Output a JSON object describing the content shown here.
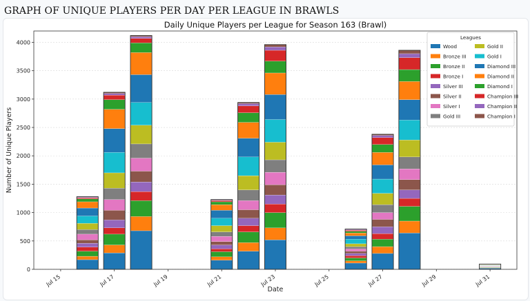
{
  "page": {
    "heading": "GRAPH OF UNIQUE PLAYERS PER DAY PER LEAGUE IN BRAWLS"
  },
  "chart_data": {
    "type": "bar",
    "stacked": true,
    "title": "Daily Unique Players per League for Season 163 (Brawl)",
    "xlabel": "Date",
    "ylabel": "Number of Unique Players",
    "ylim": [
      0,
      4200
    ],
    "y_ticks": [
      0,
      500,
      1000,
      1500,
      2000,
      2500,
      3000,
      3500,
      4000
    ],
    "grid": true,
    "x_tick_labels": [
      "Jul 15",
      "Jul 17",
      "Jul 19",
      "Jul 21",
      "Jul 23",
      "Jul 25",
      "Jul 27",
      "Jul 29",
      "Jul 31"
    ],
    "x_tick_days": [
      15,
      17,
      19,
      21,
      23,
      25,
      27,
      29,
      31
    ],
    "x_range_days": [
      14,
      32
    ],
    "categories": [
      "Jul 16",
      "Jul 17",
      "Jul 18",
      "Jul 21",
      "Jul 22",
      "Jul 23",
      "Jul 26",
      "Jul 27",
      "Jul 28",
      "Jul 31"
    ],
    "category_days": [
      16,
      17,
      18,
      21,
      22,
      23,
      26,
      27,
      28,
      31
    ],
    "legend": {
      "title": "Leagues",
      "placement": "top-right",
      "columns": 2
    },
    "series": [
      {
        "name": "Wood",
        "color": "#1f77b4",
        "values": [
          170,
          290,
          680,
          160,
          320,
          520,
          110,
          280,
          640,
          20
        ]
      },
      {
        "name": "Bronze III",
        "color": "#ff7f0e",
        "values": [
          60,
          140,
          250,
          60,
          150,
          210,
          40,
          120,
          210,
          8
        ]
      },
      {
        "name": "Bronze II",
        "color": "#2ca02c",
        "values": [
          90,
          190,
          280,
          90,
          190,
          270,
          50,
          130,
          260,
          8
        ]
      },
      {
        "name": "Bronze I",
        "color": "#d62728",
        "values": [
          70,
          110,
          160,
          50,
          110,
          150,
          40,
          100,
          140,
          5
        ]
      },
      {
        "name": "Silver III",
        "color": "#9467bd",
        "values": [
          70,
          140,
          170,
          70,
          130,
          160,
          40,
          120,
          150,
          5
        ]
      },
      {
        "name": "Silver II",
        "color": "#8c564b",
        "values": [
          60,
          170,
          190,
          60,
          150,
          180,
          40,
          130,
          180,
          5
        ]
      },
      {
        "name": "Silver I",
        "color": "#e377c2",
        "values": [
          100,
          190,
          230,
          90,
          160,
          220,
          40,
          120,
          190,
          5
        ]
      },
      {
        "name": "Gold III",
        "color": "#7f7f7f",
        "values": [
          80,
          200,
          250,
          80,
          190,
          220,
          40,
          140,
          210,
          5
        ]
      },
      {
        "name": "Gold II",
        "color": "#bcbd22",
        "values": [
          110,
          270,
          330,
          110,
          250,
          310,
          50,
          200,
          300,
          5
        ]
      },
      {
        "name": "Gold I",
        "color": "#17becf",
        "values": [
          130,
          360,
          400,
          130,
          330,
          400,
          80,
          250,
          350,
          5
        ]
      },
      {
        "name": "Diamond III",
        "color": "#1f77b4",
        "values": [
          140,
          420,
          490,
          140,
          330,
          440,
          60,
          250,
          360,
          5
        ]
      },
      {
        "name": "Diamond II",
        "color": "#ff7f0e",
        "values": [
          110,
          340,
          390,
          100,
          280,
          380,
          50,
          220,
          320,
          5
        ]
      },
      {
        "name": "Diamond I",
        "color": "#2ca02c",
        "values": [
          50,
          170,
          170,
          50,
          170,
          210,
          30,
          140,
          210,
          5
        ]
      },
      {
        "name": "Champion III",
        "color": "#d62728",
        "values": [
          20,
          80,
          80,
          20,
          120,
          190,
          20,
          120,
          210,
          3
        ]
      },
      {
        "name": "Champion II",
        "color": "#9467bd",
        "values": [
          10,
          30,
          30,
          10,
          40,
          60,
          10,
          40,
          70,
          2
        ]
      },
      {
        "name": "Champion I",
        "color": "#8c564b",
        "values": [
          10,
          20,
          20,
          10,
          20,
          40,
          10,
          20,
          60,
          2
        ]
      }
    ]
  }
}
